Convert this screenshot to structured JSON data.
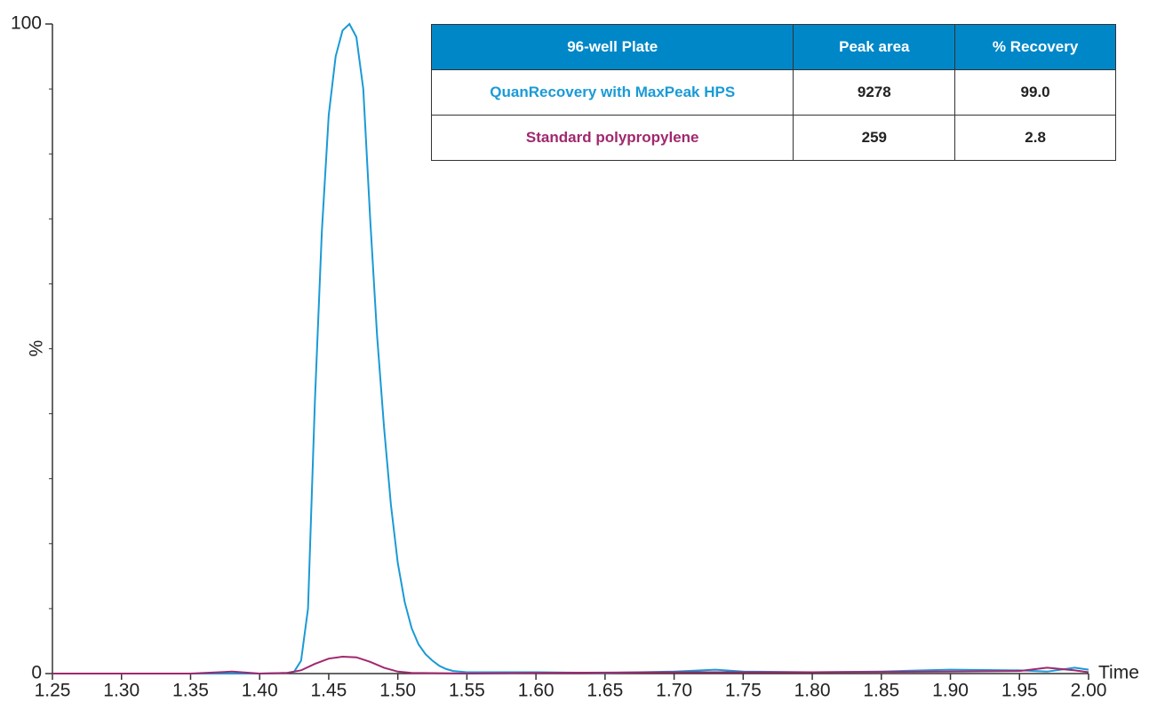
{
  "chart_data": {
    "type": "line",
    "xlabel": "Time",
    "ylabel": "%",
    "xlim": [
      1.25,
      2.0
    ],
    "ylim": [
      0,
      100
    ],
    "xticks": [
      1.25,
      {
        "value": 1.3,
        "label": "1.30"
      },
      1.35,
      {
        "value": 1.4,
        "label": "1.40"
      },
      1.45,
      {
        "value": 1.5,
        "label": "1.50"
      },
      1.55,
      {
        "value": 1.6,
        "label": "1.60"
      },
      1.65,
      {
        "value": 1.7,
        "label": "1.70"
      },
      1.75,
      {
        "value": 1.8,
        "label": "1.80"
      },
      1.85,
      {
        "value": 1.9,
        "label": "1.90"
      },
      1.95,
      {
        "value": 2.0,
        "label": "2.00"
      }
    ],
    "yticks": [
      0,
      100
    ],
    "yminorticks": [
      10,
      20,
      30,
      40,
      50,
      60,
      70,
      80,
      90
    ],
    "series": [
      {
        "name": "QuanRecovery with MaxPeak HPS",
        "color": "#1a9ad6",
        "x": [
          1.25,
          1.3,
          1.35,
          1.4,
          1.42,
          1.425,
          1.43,
          1.435,
          1.44,
          1.445,
          1.45,
          1.455,
          1.46,
          1.465,
          1.47,
          1.475,
          1.48,
          1.485,
          1.49,
          1.495,
          1.5,
          1.505,
          1.51,
          1.515,
          1.52,
          1.525,
          1.53,
          1.535,
          1.54,
          1.55,
          1.6,
          1.65,
          1.7,
          1.73,
          1.75,
          1.8,
          1.85,
          1.88,
          1.9,
          1.95,
          1.97,
          1.99,
          2.0
        ],
        "values": [
          0,
          0,
          0,
          0,
          0.1,
          0.3,
          2,
          10,
          42,
          68,
          86,
          95,
          99,
          100,
          98,
          90,
          70,
          52,
          38,
          26,
          17,
          11,
          7,
          4.5,
          3,
          2,
          1.2,
          0.7,
          0.4,
          0.2,
          0.2,
          0.1,
          0.3,
          0.6,
          0.3,
          0.2,
          0.3,
          0.5,
          0.6,
          0.5,
          0.3,
          0.9,
          0.6
        ]
      },
      {
        "name": "Standard polypropylene",
        "color": "#a0286e",
        "x": [
          1.25,
          1.3,
          1.35,
          1.38,
          1.4,
          1.42,
          1.43,
          1.44,
          1.45,
          1.46,
          1.47,
          1.48,
          1.49,
          1.5,
          1.51,
          1.55,
          1.6,
          1.7,
          1.8,
          1.9,
          1.95,
          1.97,
          1.99,
          2.0
        ],
        "values": [
          0,
          0,
          0,
          0.3,
          0,
          0.1,
          0.5,
          1.5,
          2.3,
          2.6,
          2.5,
          1.8,
          0.9,
          0.3,
          0.1,
          0,
          0.1,
          0.2,
          0.2,
          0.3,
          0.4,
          0.9,
          0.5,
          0.2
        ]
      }
    ]
  },
  "table": {
    "columns": [
      "96-well Plate",
      "Peak area",
      "% Recovery"
    ],
    "rows": [
      [
        "QuanRecovery with MaxPeak HPS",
        9278,
        "99.0"
      ],
      [
        "Standard polypropylene",
        259,
        2.8
      ]
    ]
  }
}
